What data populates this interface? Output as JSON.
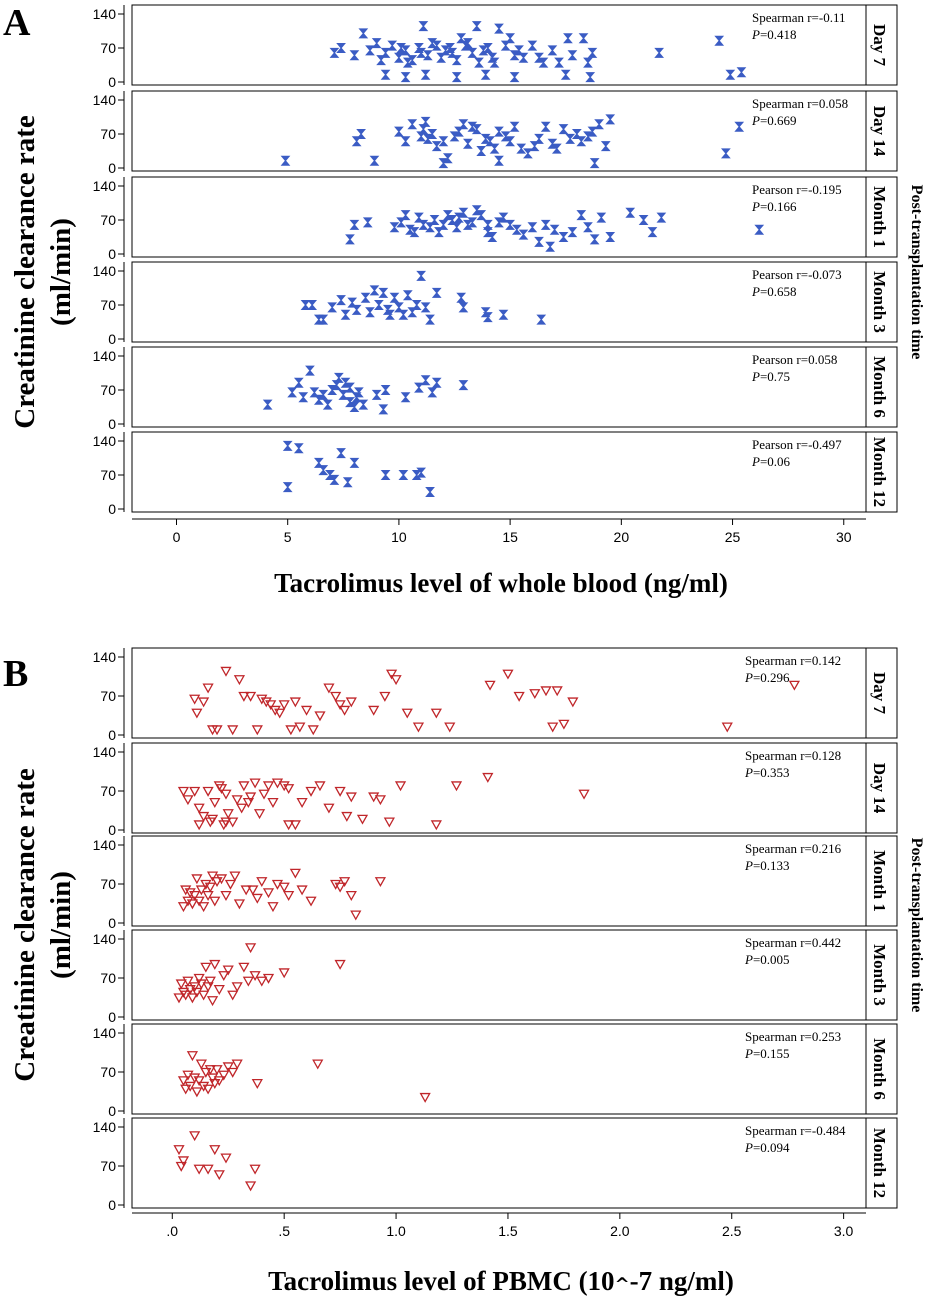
{
  "figure": {
    "letter_a": "A",
    "letter_b": "B"
  },
  "colors": {
    "panel_a_marker": "#3b5cc4",
    "panel_b_marker": "#c0262a",
    "axis": "#000000"
  },
  "chart_data": [
    {
      "type": "scatter",
      "panel": "A",
      "marker": "hourglass",
      "xlabel": "Tacrolimus level of whole blood (ng/ml)",
      "ylabel_line1": "Creatinine clearance rate",
      "ylabel_line2": "(ml/min)",
      "right_label": "Post-transplantation time",
      "xlim": [
        -2,
        31
      ],
      "ylim": [
        0,
        140
      ],
      "xticks": [
        0,
        5,
        10,
        15,
        20,
        25,
        30
      ],
      "xtick_labels": [
        "0",
        "5",
        "10",
        "15",
        "20",
        "25",
        "30"
      ],
      "yticks": [
        0,
        70,
        140
      ],
      "ytick_labels": [
        "0",
        "70",
        "140"
      ],
      "facets": [
        {
          "label": "Day 7",
          "stat_label": "Spearman r=-0.11",
          "p_label": "P",
          "p_value": "=0.418",
          "x": [
            7.1,
            7.4,
            8.0,
            8.4,
            8.7,
            9.0,
            9.2,
            9.4,
            9.7,
            10.0,
            10.1,
            10.3,
            10.4,
            10.6,
            10.9,
            11.0,
            11.1,
            11.3,
            11.5,
            11.7,
            11.9,
            12.1,
            12.3,
            12.4,
            12.6,
            12.8,
            13.0,
            13.1,
            13.3,
            13.5,
            13.6,
            13.8,
            14.0,
            14.2,
            14.3,
            14.5,
            14.8,
            15.0,
            15.2,
            15.4,
            15.6,
            16.0,
            16.3,
            16.5,
            16.9,
            17.2,
            17.6,
            17.8,
            18.3,
            18.5,
            18.7,
            21.7,
            24.4,
            24.9,
            25.4,
            9.4,
            10.3,
            11.2,
            12.6,
            13.9,
            15.2,
            17.5,
            18.6
          ],
          "y": [
            60,
            70,
            55,
            100,
            65,
            80,
            45,
            60,
            75,
            50,
            70,
            65,
            40,
            45,
            70,
            60,
            115,
            55,
            80,
            75,
            50,
            65,
            70,
            60,
            45,
            90,
            75,
            80,
            60,
            115,
            40,
            65,
            70,
            50,
            40,
            110,
            75,
            90,
            55,
            65,
            50,
            75,
            50,
            40,
            65,
            40,
            90,
            55,
            90,
            40,
            60,
            60,
            85,
            15,
            20,
            15,
            10,
            15,
            10,
            15,
            10,
            15,
            10
          ]
        },
        {
          "label": "Day 14",
          "stat_label": "Spearman r=0.058",
          "p_label": "P",
          "p_value": "=0.669",
          "x": [
            4.9,
            8.1,
            8.3,
            8.9,
            10.0,
            10.3,
            10.6,
            11.0,
            11.1,
            11.2,
            11.3,
            11.5,
            11.7,
            12.0,
            12.2,
            12.5,
            12.7,
            12.9,
            13.1,
            13.3,
            13.5,
            13.7,
            13.9,
            14.1,
            14.3,
            14.5,
            14.8,
            15.0,
            15.2,
            15.5,
            15.8,
            16.1,
            16.3,
            16.6,
            16.9,
            17.1,
            17.4,
            17.7,
            18.0,
            18.2,
            18.5,
            18.7,
            19.0,
            19.3,
            19.5,
            24.7,
            25.3,
            12.0,
            14.5,
            18.8
          ],
          "y": [
            15,
            55,
            70,
            15,
            75,
            55,
            90,
            65,
            80,
            95,
            60,
            70,
            45,
            55,
            20,
            65,
            75,
            90,
            50,
            85,
            80,
            35,
            60,
            55,
            40,
            75,
            65,
            55,
            85,
            40,
            30,
            45,
            60,
            85,
            50,
            40,
            80,
            60,
            70,
            55,
            65,
            75,
            90,
            45,
            100,
            30,
            85,
            10,
            15,
            10
          ]
        },
        {
          "label": "Month 1",
          "stat_label": "Pearson r=-0.195",
          "p_label": "P",
          "p_value": "=0.166",
          "x": [
            7.8,
            8.0,
            8.6,
            9.8,
            10.1,
            10.3,
            10.5,
            10.7,
            10.9,
            11.1,
            11.4,
            11.6,
            11.8,
            12.0,
            12.2,
            12.4,
            12.6,
            12.7,
            12.9,
            13.1,
            13.3,
            13.5,
            13.7,
            14.0,
            14.2,
            14.5,
            14.7,
            15.0,
            15.3,
            15.6,
            16.0,
            16.3,
            16.6,
            17.0,
            17.4,
            17.8,
            18.2,
            18.5,
            18.8,
            19.1,
            19.5,
            20.4,
            21.0,
            21.4,
            21.8,
            26.2,
            14.0,
            16.8
          ],
          "y": [
            30,
            60,
            65,
            55,
            65,
            80,
            50,
            45,
            75,
            60,
            55,
            70,
            45,
            60,
            80,
            70,
            55,
            75,
            85,
            60,
            65,
            90,
            80,
            45,
            35,
            65,
            75,
            60,
            50,
            40,
            55,
            25,
            60,
            50,
            35,
            45,
            80,
            55,
            30,
            75,
            35,
            85,
            70,
            45,
            75,
            50,
            60,
            15
          ]
        },
        {
          "label": "Month 3",
          "stat_label": "Pearson r=-0.073",
          "p_label": "P",
          "p_value": "=0.658",
          "x": [
            5.8,
            6.1,
            6.4,
            6.6,
            7.0,
            7.4,
            7.6,
            7.9,
            8.1,
            8.5,
            8.7,
            8.9,
            9.1,
            9.3,
            9.5,
            9.6,
            9.8,
            10.0,
            10.2,
            10.4,
            10.6,
            10.8,
            11.0,
            11.2,
            11.4,
            11.7,
            12.8,
            12.9,
            13.9,
            14.0,
            14.7,
            16.4
          ],
          "y": [
            70,
            70,
            40,
            40,
            65,
            80,
            50,
            75,
            60,
            85,
            55,
            100,
            70,
            95,
            60,
            50,
            85,
            65,
            50,
            90,
            55,
            70,
            130,
            65,
            40,
            95,
            85,
            65,
            55,
            45,
            50,
            40
          ]
        },
        {
          "label": "Month 6",
          "stat_label": "Pearson r=0.058",
          "p_label": "P",
          "p_value": "=0.75",
          "x": [
            4.1,
            5.2,
            5.5,
            5.7,
            6.0,
            6.2,
            6.4,
            6.6,
            6.8,
            7.0,
            7.2,
            7.3,
            7.5,
            7.6,
            7.8,
            8.0,
            8.2,
            8.4,
            9.0,
            9.4,
            10.3,
            10.9,
            11.2,
            11.5,
            11.7,
            12.9,
            7.8,
            8.1,
            9.3
          ],
          "y": [
            40,
            65,
            85,
            55,
            110,
            65,
            50,
            60,
            40,
            70,
            80,
            95,
            60,
            85,
            75,
            35,
            65,
            40,
            60,
            70,
            55,
            75,
            90,
            65,
            85,
            80,
            45,
            55,
            30
          ]
        },
        {
          "label": "Month 12",
          "stat_label": "Pearson r=-0.497",
          "p_label": "P",
          "p_value": "=0.06",
          "x": [
            5.0,
            5.0,
            5.5,
            6.4,
            6.6,
            6.9,
            7.1,
            7.4,
            7.7,
            8.0,
            9.4,
            10.2,
            10.8,
            11.0,
            11.4
          ],
          "y": [
            130,
            45,
            125,
            95,
            80,
            70,
            60,
            115,
            55,
            95,
            70,
            70,
            70,
            75,
            35
          ]
        }
      ]
    },
    {
      "type": "scatter",
      "panel": "B",
      "marker": "triangle-down",
      "xlabel": "Tacrolimus level of PBMC (10^-7 ng/ml)",
      "ylabel_line1": "Creatinine clearance rate",
      "ylabel_line2": "(ml/min)",
      "right_label": "Post-transplantation time",
      "xlim": [
        -0.18,
        3.1
      ],
      "ylim": [
        0,
        140
      ],
      "xticks": [
        0,
        0.5,
        1.0,
        1.5,
        2.0,
        2.5,
        3.0
      ],
      "xtick_labels": [
        ".0",
        ".5",
        "1.0",
        "1.5",
        "2.0",
        "2.5",
        "3.0"
      ],
      "yticks": [
        0,
        70,
        140
      ],
      "ytick_labels": [
        "0",
        "70",
        "140"
      ],
      "facets": [
        {
          "label": "Day 7",
          "stat_label": "Spearman r=0.142",
          "p_label": "P",
          "p_value": "=0.296",
          "x": [
            0.1,
            0.11,
            0.14,
            0.16,
            0.18,
            0.2,
            0.24,
            0.27,
            0.3,
            0.32,
            0.35,
            0.38,
            0.4,
            0.42,
            0.44,
            0.46,
            0.48,
            0.5,
            0.53,
            0.55,
            0.57,
            0.6,
            0.63,
            0.66,
            0.7,
            0.73,
            0.75,
            0.77,
            0.8,
            0.9,
            0.95,
            0.98,
            1.0,
            1.05,
            1.1,
            1.18,
            1.24,
            1.42,
            1.5,
            1.55,
            1.62,
            1.67,
            1.72,
            1.79,
            1.7,
            1.75,
            2.48,
            2.78
          ],
          "y": [
            65,
            40,
            60,
            85,
            10,
            10,
            115,
            10,
            100,
            70,
            70,
            10,
            65,
            60,
            55,
            45,
            40,
            55,
            10,
            60,
            15,
            45,
            10,
            35,
            85,
            70,
            55,
            45,
            60,
            45,
            70,
            110,
            100,
            40,
            15,
            40,
            15,
            90,
            110,
            70,
            75,
            80,
            80,
            60,
            15,
            20,
            15,
            90
          ]
        },
        {
          "label": "Day 14",
          "stat_label": "Spearman r=0.128",
          "p_label": "P",
          "p_value": "=0.353",
          "x": [
            0.05,
            0.07,
            0.1,
            0.12,
            0.14,
            0.16,
            0.17,
            0.19,
            0.21,
            0.22,
            0.23,
            0.24,
            0.25,
            0.27,
            0.29,
            0.31,
            0.32,
            0.34,
            0.35,
            0.37,
            0.39,
            0.41,
            0.43,
            0.45,
            0.47,
            0.5,
            0.52,
            0.55,
            0.58,
            0.62,
            0.66,
            0.7,
            0.75,
            0.78,
            0.8,
            0.85,
            0.9,
            0.93,
            0.97,
            1.02,
            1.18,
            1.27,
            1.41,
            1.84,
            0.12,
            0.18,
            0.24,
            0.52
          ],
          "y": [
            70,
            55,
            70,
            40,
            25,
            70,
            15,
            50,
            80,
            75,
            10,
            65,
            30,
            15,
            55,
            40,
            80,
            50,
            60,
            85,
            30,
            65,
            80,
            50,
            85,
            80,
            75,
            10,
            50,
            70,
            80,
            40,
            70,
            25,
            60,
            20,
            60,
            55,
            15,
            80,
            10,
            80,
            95,
            65,
            10,
            20,
            15,
            10
          ]
        },
        {
          "label": "Month 1",
          "stat_label": "Spearman r=0.216",
          "p_label": "P",
          "p_value": "=0.133",
          "x": [
            0.05,
            0.06,
            0.07,
            0.08,
            0.09,
            0.1,
            0.11,
            0.12,
            0.13,
            0.14,
            0.15,
            0.16,
            0.17,
            0.18,
            0.19,
            0.2,
            0.22,
            0.24,
            0.26,
            0.28,
            0.3,
            0.33,
            0.36,
            0.38,
            0.4,
            0.43,
            0.45,
            0.47,
            0.5,
            0.52,
            0.55,
            0.58,
            0.62,
            0.73,
            0.75,
            0.77,
            0.8,
            0.82,
            0.93
          ],
          "y": [
            30,
            60,
            40,
            55,
            35,
            50,
            80,
            40,
            60,
            30,
            70,
            50,
            65,
            85,
            40,
            75,
            80,
            50,
            70,
            85,
            35,
            60,
            60,
            45,
            75,
            55,
            30,
            70,
            65,
            50,
            90,
            60,
            40,
            70,
            65,
            75,
            50,
            15,
            75
          ]
        },
        {
          "label": "Month 3",
          "stat_label": "Spearman r=0.442",
          "p_label": "P",
          "p_value": "=0.005",
          "x": [
            0.03,
            0.04,
            0.05,
            0.06,
            0.07,
            0.08,
            0.09,
            0.1,
            0.11,
            0.12,
            0.13,
            0.14,
            0.15,
            0.16,
            0.17,
            0.18,
            0.19,
            0.21,
            0.23,
            0.25,
            0.27,
            0.29,
            0.32,
            0.34,
            0.35,
            0.37,
            0.4,
            0.43,
            0.5,
            0.75
          ],
          "y": [
            35,
            60,
            45,
            40,
            65,
            50,
            35,
            55,
            45,
            70,
            60,
            40,
            90,
            55,
            65,
            30,
            95,
            50,
            75,
            85,
            40,
            55,
            90,
            65,
            125,
            75,
            65,
            70,
            80,
            95
          ]
        },
        {
          "label": "Month 6",
          "stat_label": "Spearman r=0.253",
          "p_label": "P",
          "p_value": "=0.155",
          "x": [
            0.05,
            0.06,
            0.07,
            0.08,
            0.09,
            0.1,
            0.11,
            0.12,
            0.13,
            0.14,
            0.15,
            0.16,
            0.17,
            0.18,
            0.19,
            0.2,
            0.21,
            0.23,
            0.25,
            0.27,
            0.29,
            0.38,
            0.65,
            1.13
          ],
          "y": [
            55,
            40,
            65,
            45,
            100,
            60,
            35,
            55,
            85,
            45,
            70,
            40,
            75,
            60,
            50,
            75,
            55,
            65,
            80,
            70,
            85,
            50,
            85,
            25
          ]
        },
        {
          "label": "Month 12",
          "stat_label": "Spearman r=-0.484",
          "p_label": "P",
          "p_value": "=0.094",
          "x": [
            0.03,
            0.04,
            0.05,
            0.1,
            0.12,
            0.16,
            0.19,
            0.21,
            0.24,
            0.35,
            0.37
          ],
          "y": [
            100,
            70,
            80,
            125,
            65,
            65,
            100,
            55,
            85,
            35,
            65
          ]
        }
      ]
    }
  ]
}
